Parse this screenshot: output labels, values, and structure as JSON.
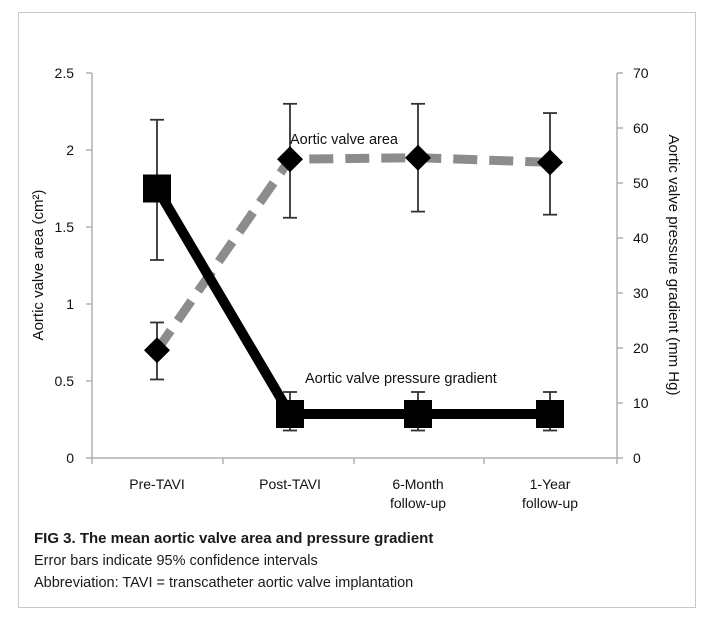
{
  "chart_data": {
    "type": "line",
    "categories": [
      "Pre-TAVI",
      "Post-TAVI",
      "6-Month follow-up",
      "1-Year follow-up"
    ],
    "category_lines": [
      [
        "Pre-TAVI"
      ],
      [
        "Post-TAVI"
      ],
      [
        "6-Month",
        "follow-up"
      ],
      [
        "1-Year",
        "follow-up"
      ]
    ],
    "y_left": {
      "label": "Aortic valve area (cm²)",
      "lim": [
        0,
        2.5
      ],
      "ticks": [
        0,
        0.5,
        1,
        1.5,
        2,
        2.5
      ],
      "tick_labels": [
        "0",
        "0.5",
        "1",
        "1.5",
        "2",
        "2.5"
      ]
    },
    "y_right": {
      "label": "Aortic valve pressure gradient (mm Hg)",
      "lim": [
        0,
        70
      ],
      "ticks": [
        0,
        10,
        20,
        30,
        40,
        50,
        60,
        70
      ],
      "tick_labels": [
        "0",
        "10",
        "20",
        "30",
        "40",
        "50",
        "60",
        "70"
      ]
    },
    "series": [
      {
        "name": "Aortic valve area",
        "axis": "left",
        "style": "dashed",
        "marker": "diamond",
        "color": "#8c8c8c",
        "values": [
          0.7,
          1.94,
          1.95,
          1.92
        ],
        "ci_low": [
          0.51,
          1.56,
          1.6,
          1.58
        ],
        "ci_high": [
          0.88,
          2.3,
          2.3,
          2.24
        ]
      },
      {
        "name": "Aortic valve pressure gradient",
        "axis": "right",
        "style": "solid",
        "marker": "square",
        "color": "#000000",
        "values": [
          49,
          8,
          8,
          8
        ],
        "ci_low": [
          36,
          5,
          5,
          5
        ],
        "ci_high": [
          61.5,
          12,
          12,
          12
        ]
      }
    ],
    "annotations": [
      {
        "text": "Aortic valve area",
        "series": 0
      },
      {
        "text": "Aortic valve pressure gradient",
        "series": 1
      }
    ]
  },
  "caption": {
    "title": "FIG 3. The mean aortic valve area and pressure gradient",
    "line1": "Error bars indicate 95% confidence intervals",
    "line2": "Abbreviation: TAVI = transcatheter aortic valve implantation"
  }
}
